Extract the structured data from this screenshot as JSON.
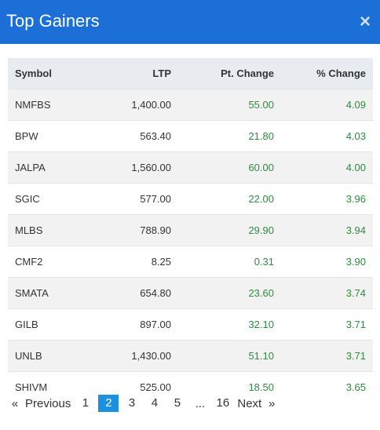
{
  "header": {
    "title": "Top Gainers",
    "close_label": "×"
  },
  "table": {
    "columns": [
      "Symbol",
      "LTP",
      "Pt. Change",
      "% Change"
    ],
    "rows": [
      {
        "symbol": "NMFBS",
        "ltp": "1,400.00",
        "pt_change": "55.00",
        "pct_change": "4.09"
      },
      {
        "symbol": "BPW",
        "ltp": "563.40",
        "pt_change": "21.80",
        "pct_change": "4.03"
      },
      {
        "symbol": "JALPA",
        "ltp": "1,560.00",
        "pt_change": "60.00",
        "pct_change": "4.00"
      },
      {
        "symbol": "SGIC",
        "ltp": "577.00",
        "pt_change": "22.00",
        "pct_change": "3.96"
      },
      {
        "symbol": "MLBS",
        "ltp": "788.90",
        "pt_change": "29.90",
        "pct_change": "3.94"
      },
      {
        "symbol": "CMF2",
        "ltp": "8.25",
        "pt_change": "0.31",
        "pct_change": "3.90"
      },
      {
        "symbol": "SMATA",
        "ltp": "654.80",
        "pt_change": "23.60",
        "pct_change": "3.74"
      },
      {
        "symbol": "GILB",
        "ltp": "897.00",
        "pt_change": "32.10",
        "pct_change": "3.71"
      },
      {
        "symbol": "UNLB",
        "ltp": "1,430.00",
        "pt_change": "51.10",
        "pct_change": "3.71"
      },
      {
        "symbol": "SHIVM",
        "ltp": "525.00",
        "pt_change": "18.50",
        "pct_change": "3.65"
      }
    ]
  },
  "pagination": {
    "first_arrow": "«",
    "previous_label": "Previous",
    "pages": [
      "1",
      "2",
      "3",
      "4",
      "5"
    ],
    "current_page": "2",
    "ellipsis": "...",
    "last_page": "16",
    "next_label": "Next",
    "last_arrow": "»"
  },
  "colors": {
    "header_bg": "#1b6fd6",
    "positive": "#2e8b3e",
    "active_page": "#1b8fe0"
  }
}
